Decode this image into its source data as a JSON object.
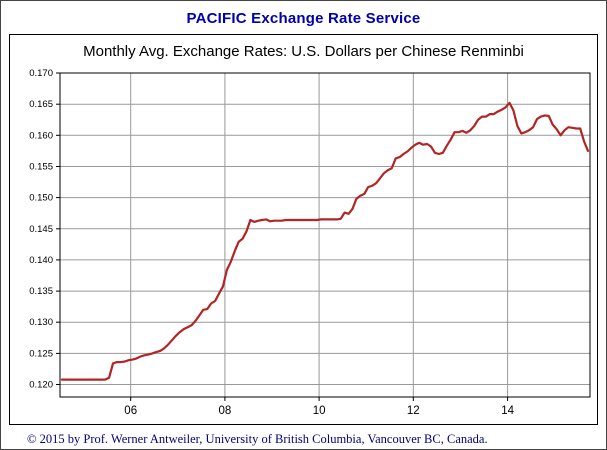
{
  "page": {
    "header_title": "PACIFIC Exchange Rate Service",
    "footer": "© 2015 by Prof. Werner Antweiler, University of British Columbia, Vancouver BC, Canada."
  },
  "chart_data": {
    "type": "line",
    "title": "Monthly Avg. Exchange Rates: U.S. Dollars per Chinese Renminbi",
    "series_name": "USD per Chinese Renminbi, monthly average",
    "x_start": 2004.5417,
    "x_step_years": 0.0833333,
    "values": [
      0.1208,
      0.1208,
      0.1208,
      0.1208,
      0.1208,
      0.1208,
      0.1208,
      0.1208,
      0.1208,
      0.1208,
      0.1208,
      0.1208,
      0.1211,
      0.1234,
      0.1236,
      0.1236,
      0.1237,
      0.1239,
      0.124,
      0.1242,
      0.1245,
      0.1247,
      0.1248,
      0.125,
      0.1252,
      0.1254,
      0.1258,
      0.1264,
      0.1271,
      0.1278,
      0.1284,
      0.1289,
      0.1292,
      0.1295,
      0.1302,
      0.1311,
      0.132,
      0.1321,
      0.133,
      0.1334,
      0.1346,
      0.1357,
      0.1384,
      0.1397,
      0.1414,
      0.1429,
      0.1434,
      0.1446,
      0.1464,
      0.1461,
      0.1463,
      0.1464,
      0.1465,
      0.1462,
      0.1463,
      0.1463,
      0.1463,
      0.1464,
      0.1464,
      0.1464,
      0.1464,
      0.1464,
      0.1464,
      0.1464,
      0.1464,
      0.1464,
      0.1465,
      0.1465,
      0.1465,
      0.1465,
      0.1465,
      0.1466,
      0.1476,
      0.1474,
      0.1482,
      0.1498,
      0.1503,
      0.1506,
      0.1517,
      0.1519,
      0.1523,
      0.1531,
      0.1539,
      0.1544,
      0.1547,
      0.1563,
      0.1565,
      0.157,
      0.1574,
      0.158,
      0.1585,
      0.1588,
      0.1585,
      0.1586,
      0.1582,
      0.1572,
      0.157,
      0.1572,
      0.1583,
      0.1593,
      0.1605,
      0.1605,
      0.1607,
      0.1604,
      0.1608,
      0.1615,
      0.1625,
      0.163,
      0.163,
      0.1634,
      0.1634,
      0.1638,
      0.1641,
      0.1645,
      0.1652,
      0.164,
      0.1615,
      0.1603,
      0.1605,
      0.1608,
      0.1613,
      0.1626,
      0.163,
      0.1632,
      0.1631,
      0.1617,
      0.161,
      0.16,
      0.1608,
      0.1613,
      0.1612,
      0.1611,
      0.1611,
      0.159,
      0.1575
    ],
    "xlim": [
      2004.5,
      2015.75
    ],
    "ylim": [
      0.118,
      0.17
    ],
    "yticks": [
      0.12,
      0.125,
      0.13,
      0.135,
      0.14,
      0.145,
      0.15,
      0.155,
      0.16,
      0.165,
      0.17
    ],
    "ytick_labels": [
      "0.120",
      "0.125",
      "0.130",
      "0.135",
      "0.140",
      "0.145",
      "0.150",
      "0.155",
      "0.160",
      "0.165",
      "0.170"
    ],
    "xticks": [
      2006,
      2008,
      2010,
      2012,
      2014
    ],
    "xtick_labels": [
      "06",
      "08",
      "10",
      "12",
      "14"
    ],
    "line_color": "#b32424",
    "grid_color": "#9a9a9a",
    "grid": true,
    "legend": "none"
  }
}
